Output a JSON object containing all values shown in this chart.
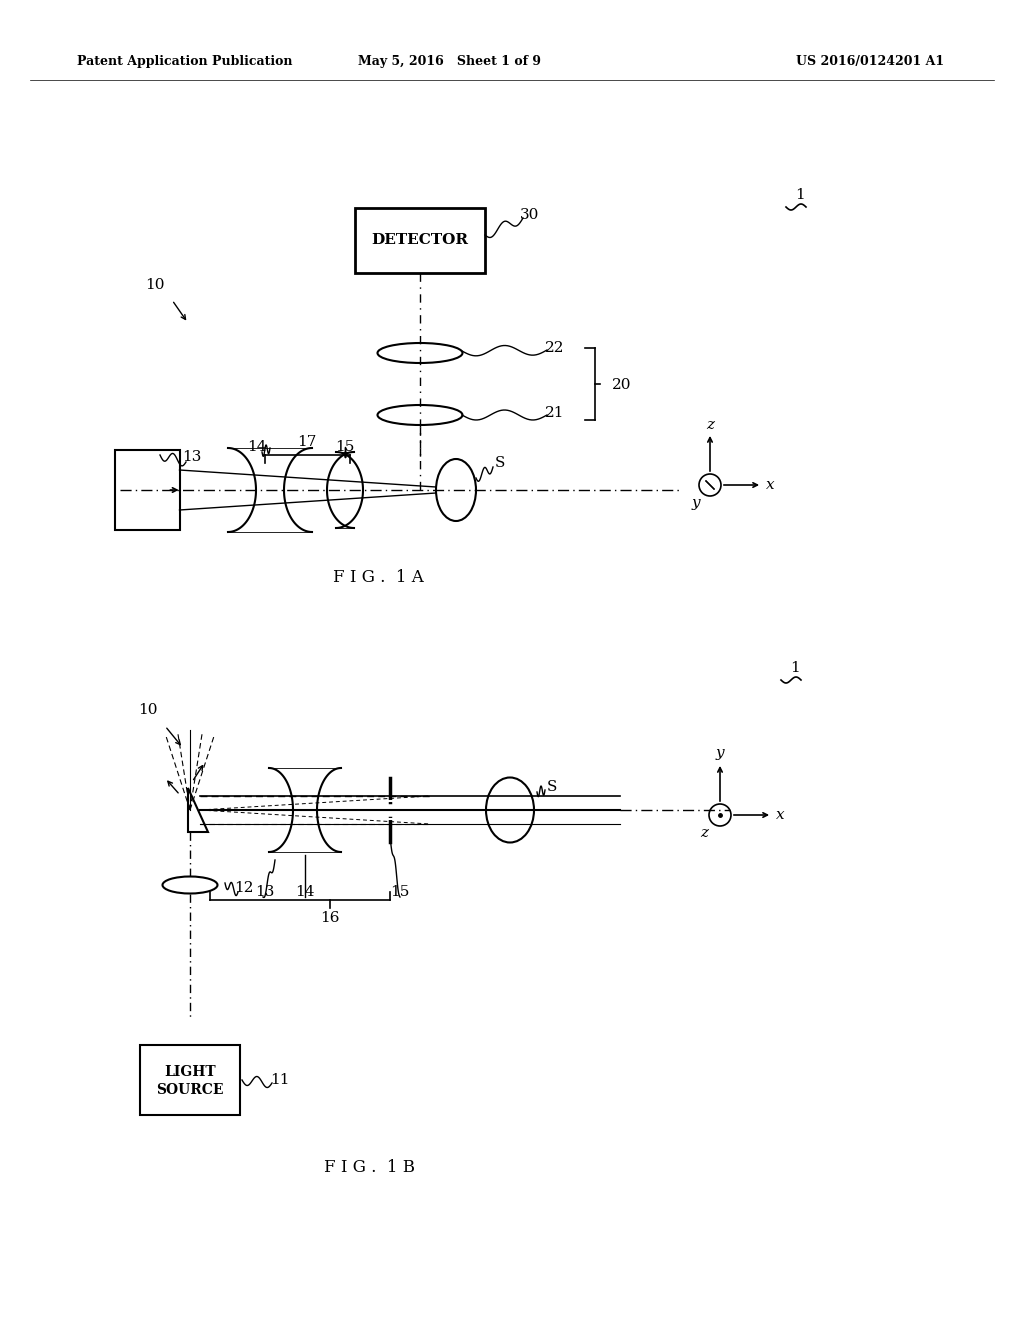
{
  "bg_color": "#ffffff",
  "lc": "#000000",
  "header_text": "Patent Application Publication",
  "header_date": "May 5, 2016   Sheet 1 of 9",
  "header_patent": "US 2016/0124201 A1",
  "fig1a_label": "F I G .  1 A",
  "fig1b_label": "F I G .  1 B"
}
